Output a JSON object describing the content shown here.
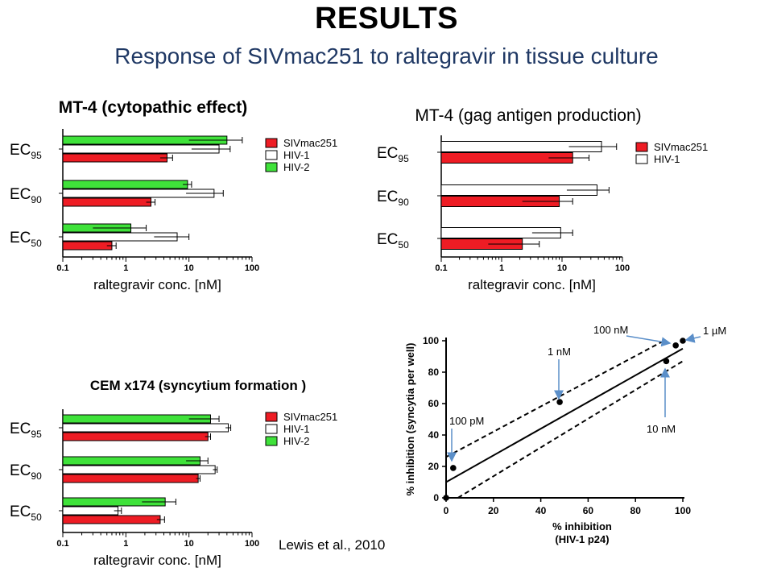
{
  "slide": {
    "title": "RESULTS",
    "subtitle": "Response  of SIVmac251 to raltegravir  in tissue culture",
    "citation": "Lewis et al., 2010"
  },
  "colors": {
    "SIVmac251": "#ee1c24",
    "HIV-1": "#ffffff",
    "HIV-2": "#3fe23a",
    "axis": "#000000",
    "arrow": "#5b8fc9"
  },
  "chart_data": [
    {
      "id": "mt4-cpe",
      "type": "bar",
      "orientation": "horizontal",
      "title": "MT-4 (cytopathic effect)",
      "xlabel": "raltegravir conc. [nM]",
      "xscale": "log",
      "xlim": [
        0.1,
        100
      ],
      "xticks": [
        "0.1",
        "1",
        "10",
        "100"
      ],
      "categories": [
        "EC95",
        "EC90",
        "EC50"
      ],
      "category_labels": [
        {
          "main": "EC",
          "sub": "95"
        },
        {
          "main": "EC",
          "sub": "90"
        },
        {
          "main": "EC",
          "sub": "50"
        }
      ],
      "legend_position": "right",
      "series": [
        {
          "name": "HIV-2",
          "values": [
            40,
            9.5,
            1.2
          ],
          "error": [
            [
              10,
              70
            ],
            [
              8,
              11
            ],
            [
              0.3,
              2.1
            ]
          ]
        },
        {
          "name": "HIV-1",
          "values": [
            30,
            25,
            6.5
          ],
          "error": [
            [
              11,
              45
            ],
            [
              9,
              35
            ],
            [
              2.8,
              10
            ]
          ]
        },
        {
          "name": "SIVmac251",
          "values": [
            4.5,
            2.5,
            0.6
          ],
          "error": [
            [
              3.5,
              5.5
            ],
            [
              2.1,
              2.9
            ],
            [
              0.5,
              0.7
            ]
          ]
        }
      ]
    },
    {
      "id": "mt4-gag",
      "type": "bar",
      "orientation": "horizontal",
      "title": "MT-4 (gag antigen production)",
      "xlabel": "raltegravir conc. [nM]",
      "xscale": "log",
      "xlim": [
        0.1,
        100
      ],
      "xticks": [
        "0.1",
        "1",
        "10",
        "100"
      ],
      "categories": [
        "EC95",
        "EC90",
        "EC50"
      ],
      "category_labels": [
        {
          "main": "EC",
          "sub": "95"
        },
        {
          "main": "EC",
          "sub": "90"
        },
        {
          "main": "EC",
          "sub": "50"
        }
      ],
      "legend_position": "right",
      "series": [
        {
          "name": "HIV-1",
          "values": [
            45,
            38,
            9.5
          ],
          "error": [
            [
              13,
              80
            ],
            [
              12,
              60
            ],
            [
              3.2,
              15
            ]
          ]
        },
        {
          "name": "SIVmac251",
          "values": [
            15,
            9,
            2.2
          ],
          "error": [
            [
              6,
              28
            ],
            [
              2.2,
              15
            ],
            [
              0.6,
              4.2
            ]
          ]
        }
      ]
    },
    {
      "id": "cem-x174",
      "type": "bar",
      "orientation": "horizontal",
      "title": "CEM x174 (syncytium formation )",
      "xlabel": "raltegravir conc. [nM]",
      "xscale": "log",
      "xlim": [
        0.1,
        100
      ],
      "xticks": [
        "0.1",
        "1",
        "10",
        "100"
      ],
      "categories": [
        "EC95",
        "EC90",
        "EC50"
      ],
      "category_labels": [
        {
          "main": "EC",
          "sub": "95"
        },
        {
          "main": "EC",
          "sub": "90"
        },
        {
          "main": "EC",
          "sub": "50"
        }
      ],
      "legend_position": "right",
      "series": [
        {
          "name": "HIV-2",
          "values": [
            22,
            15,
            4.2
          ],
          "error": [
            [
              10,
              30
            ],
            [
              9,
              20
            ],
            [
              1.8,
              6.2
            ]
          ]
        },
        {
          "name": "HIV-1",
          "values": [
            42,
            26,
            0.75
          ],
          "error": [
            [
              38,
              46
            ],
            [
              24,
              28
            ],
            [
              0.65,
              0.85
            ]
          ]
        },
        {
          "name": "SIVmac251",
          "values": [
            20,
            14,
            3.5
          ],
          "error": [
            [
              18,
              22
            ],
            [
              13,
              15
            ],
            [
              3.1,
              4.1
            ]
          ]
        }
      ]
    },
    {
      "id": "correlation",
      "type": "scatter",
      "xlabel": "% inhibition",
      "xlabel2": "(HIV-1 p24)",
      "ylabel": "% inhibition (syncytia per well)",
      "xlim": [
        0,
        100
      ],
      "ylim": [
        0,
        100
      ],
      "xticks": [
        "0",
        "20",
        "40",
        "60",
        "80",
        "100"
      ],
      "yticks": [
        "0",
        "20",
        "40",
        "60",
        "80",
        "100"
      ],
      "points": [
        [
          0,
          0
        ],
        [
          3,
          19
        ],
        [
          48,
          61
        ],
        [
          93,
          87
        ],
        [
          97,
          97
        ],
        [
          100,
          100
        ]
      ],
      "fit_line": [
        [
          0,
          10
        ],
        [
          100,
          95
        ]
      ],
      "ci_upper": [
        [
          0,
          26
        ],
        [
          92,
          100
        ]
      ],
      "ci_lower": [
        [
          5,
          0
        ],
        [
          100,
          87
        ]
      ],
      "annotations": [
        {
          "text": "100 pM",
          "x": 3,
          "y": 19
        },
        {
          "text": "1 nM",
          "x": 48,
          "y": 61
        },
        {
          "text": "10 nM",
          "x": 93,
          "y": 87
        },
        {
          "text": "100 nM",
          "x": 97,
          "y": 97
        },
        {
          "text": "1 µM",
          "x": 100,
          "y": 100
        }
      ]
    }
  ]
}
